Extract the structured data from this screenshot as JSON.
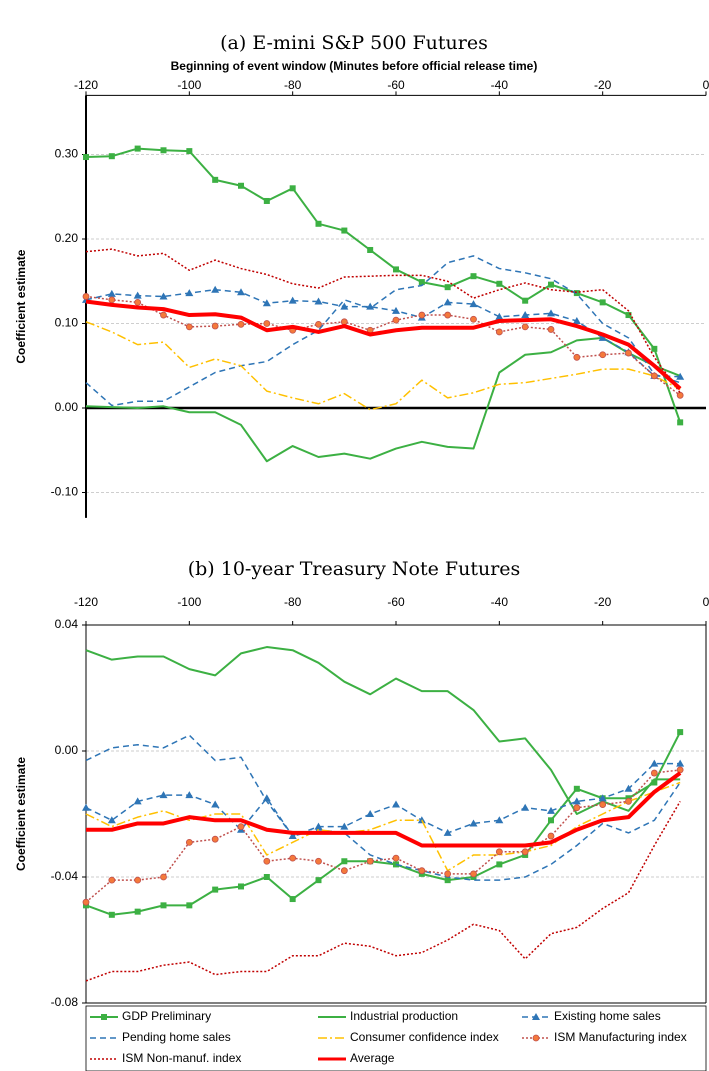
{
  "chart_data": [
    {
      "type": "line",
      "title": "(a) E-mini S&P 500 Futures",
      "xlabel": "Beginning of event window (Minutes before official release time)",
      "ylabel": "Coefficient estimate",
      "x": [
        -120,
        -115,
        -110,
        -105,
        -100,
        -95,
        -90,
        -85,
        -80,
        -75,
        -70,
        -65,
        -60,
        -55,
        -50,
        -45,
        -40,
        -35,
        -30,
        -25,
        -20,
        -15,
        -10,
        -5
      ],
      "xlim": [
        -120,
        0
      ],
      "xticks": [
        -120,
        -100,
        -80,
        -60,
        -40,
        -20,
        0
      ],
      "ylim": [
        -0.13,
        0.37
      ],
      "yticks": [
        {
          "value": -0.1,
          "label": "-0.10"
        },
        {
          "value": 0,
          "label": "0.00"
        },
        {
          "value": 0.1,
          "label": "0.10"
        },
        {
          "value": 0.2,
          "label": "0.20"
        },
        {
          "value": 0.3,
          "label": "0.30"
        }
      ],
      "grid": true,
      "series": [
        {
          "color": "#3cb043",
          "dash": "solid",
          "marker": "square",
          "width": 2,
          "values": [
            0.297,
            0.298,
            0.307,
            0.305,
            0.304,
            0.27,
            0.263,
            0.245,
            0.26,
            0.218,
            0.21,
            0.187,
            0.164,
            0.149,
            0.143,
            0.156,
            0.147,
            0.127,
            0.146,
            0.136,
            0.125,
            0.11,
            0.07,
            -0.017
          ]
        },
        {
          "color": "#3cb043",
          "dash": "solid",
          "marker": "none",
          "width": 2,
          "values": [
            0.002,
            0.001,
            0.0,
            0.002,
            -0.005,
            -0.005,
            -0.02,
            -0.063,
            -0.045,
            -0.058,
            -0.054,
            -0.06,
            -0.048,
            -0.04,
            -0.046,
            -0.048,
            0.042,
            0.063,
            0.066,
            0.08,
            0.083,
            0.065,
            0.05,
            0.038
          ]
        },
        {
          "color": "#2e75b6",
          "dash": "dash",
          "marker": "triangle",
          "width": 1.5,
          "values": [
            0.128,
            0.135,
            0.133,
            0.132,
            0.136,
            0.14,
            0.137,
            0.124,
            0.127,
            0.126,
            0.12,
            0.12,
            0.115,
            0.107,
            0.125,
            0.123,
            0.108,
            0.11,
            0.112,
            0.103,
            0.083,
            0.066,
            0.038,
            0.037
          ]
        },
        {
          "color": "#2e75b6",
          "dash": "dash",
          "marker": "none",
          "width": 1.5,
          "values": [
            0.03,
            0.003,
            0.008,
            0.008,
            0.025,
            0.042,
            0.05,
            0.055,
            0.075,
            0.092,
            0.128,
            0.118,
            0.14,
            0.145,
            0.172,
            0.18,
            0.165,
            0.16,
            0.153,
            0.135,
            0.1,
            0.083,
            0.04,
            0.03
          ]
        },
        {
          "color": "#ffc000",
          "dash": "dashdot",
          "marker": "none",
          "width": 1.5,
          "values": [
            0.102,
            0.09,
            0.075,
            0.078,
            0.048,
            0.058,
            0.05,
            0.02,
            0.012,
            0.005,
            0.017,
            -0.002,
            0.005,
            0.033,
            0.012,
            0.018,
            0.028,
            0.03,
            0.035,
            0.04,
            0.046,
            0.046,
            0.038,
            0.022
          ]
        },
        {
          "color": "#c0504d",
          "dash": "dot",
          "marker": "circle",
          "width": 1.5,
          "values": [
            0.132,
            0.128,
            0.125,
            0.11,
            0.096,
            0.097,
            0.099,
            0.1,
            0.092,
            0.099,
            0.102,
            0.092,
            0.104,
            0.11,
            0.11,
            0.105,
            0.09,
            0.096,
            0.093,
            0.06,
            0.063,
            0.065,
            0.038,
            0.015
          ]
        },
        {
          "color": "#c00000",
          "dash": "dot",
          "marker": "none",
          "width": 1.5,
          "values": [
            0.185,
            0.188,
            0.18,
            0.183,
            0.163,
            0.175,
            0.165,
            0.158,
            0.147,
            0.142,
            0.155,
            0.156,
            0.157,
            0.157,
            0.15,
            0.13,
            0.14,
            0.148,
            0.14,
            0.137,
            0.14,
            0.115,
            0.06,
            0.018
          ]
        },
        {
          "color": "#ff0000",
          "dash": "solid",
          "marker": "none",
          "width": 4,
          "values": [
            0.126,
            0.122,
            0.119,
            0.117,
            0.11,
            0.111,
            0.107,
            0.092,
            0.096,
            0.09,
            0.097,
            0.087,
            0.092,
            0.095,
            0.095,
            0.095,
            0.103,
            0.104,
            0.105,
            0.097,
            0.087,
            0.075,
            0.05,
            0.023
          ]
        }
      ]
    },
    {
      "type": "line",
      "title": "(b) 10-year Treasury Note Futures",
      "ylabel": "Coefficient estimate",
      "x": [
        -120,
        -115,
        -110,
        -105,
        -100,
        -95,
        -90,
        -85,
        -80,
        -75,
        -70,
        -65,
        -60,
        -55,
        -50,
        -45,
        -40,
        -35,
        -30,
        -25,
        -20,
        -15,
        -10,
        -5
      ],
      "xlim": [
        -120,
        0
      ],
      "xticks": [
        -120,
        -100,
        -80,
        -60,
        -40,
        -20,
        0
      ],
      "ylim": [
        -0.08,
        0.04
      ],
      "yticks": [
        -0.08,
        -0.04,
        {
          "value": 0,
          "label": "0.00"
        },
        0.04
      ],
      "grid": true,
      "legend": "bottom",
      "series": [
        {
          "name": "GDP Preliminary",
          "color": "#3cb043",
          "dash": "solid",
          "marker": "square",
          "width": 2,
          "values": [
            -0.049,
            -0.052,
            -0.051,
            -0.049,
            -0.049,
            -0.044,
            -0.043,
            -0.04,
            -0.047,
            -0.041,
            -0.035,
            -0.035,
            -0.036,
            -0.039,
            -0.041,
            -0.04,
            -0.036,
            -0.033,
            -0.022,
            -0.012,
            -0.015,
            -0.015,
            -0.01,
            0.006
          ]
        },
        {
          "name": "Industrial production",
          "color": "#3cb043",
          "dash": "solid",
          "marker": "none",
          "width": 2,
          "values": [
            0.032,
            0.029,
            0.03,
            0.03,
            0.026,
            0.024,
            0.031,
            0.033,
            0.032,
            0.028,
            0.022,
            0.018,
            0.023,
            0.019,
            0.019,
            0.013,
            0.003,
            0.004,
            -0.006,
            -0.02,
            -0.016,
            -0.019,
            -0.009,
            -0.009
          ]
        },
        {
          "name": "Existing home sales",
          "color": "#2e75b6",
          "dash": "dash",
          "marker": "triangle",
          "width": 1.5,
          "values": [
            -0.018,
            -0.022,
            -0.016,
            -0.014,
            -0.014,
            -0.017,
            -0.025,
            -0.015,
            -0.027,
            -0.024,
            -0.024,
            -0.02,
            -0.017,
            -0.022,
            -0.026,
            -0.023,
            -0.022,
            -0.018,
            -0.019,
            -0.016,
            -0.015,
            -0.012,
            -0.004,
            -0.004
          ]
        },
        {
          "name": "Pending home sales",
          "color": "#2e75b6",
          "dash": "dash",
          "marker": "none",
          "width": 1.5,
          "values": [
            -0.003,
            0.001,
            0.002,
            0.001,
            0.005,
            -0.003,
            -0.002,
            -0.016,
            -0.027,
            -0.025,
            -0.026,
            -0.033,
            -0.036,
            -0.038,
            -0.04,
            -0.041,
            -0.041,
            -0.04,
            -0.036,
            -0.03,
            -0.023,
            -0.026,
            -0.022,
            -0.01
          ]
        },
        {
          "name": "Consumer confidence index",
          "color": "#ffc000",
          "dash": "dashdot",
          "marker": "none",
          "width": 1.5,
          "values": [
            -0.02,
            -0.024,
            -0.021,
            -0.019,
            -0.022,
            -0.02,
            -0.02,
            -0.033,
            -0.029,
            -0.025,
            -0.026,
            -0.025,
            -0.022,
            -0.022,
            -0.038,
            -0.033,
            -0.033,
            -0.032,
            -0.03,
            -0.024,
            -0.02,
            -0.016,
            -0.013,
            -0.01
          ]
        },
        {
          "name": "ISM Manufacturing index",
          "color": "#c0504d",
          "dash": "dot",
          "marker": "circle",
          "width": 1.5,
          "values": [
            -0.048,
            -0.041,
            -0.041,
            -0.04,
            -0.029,
            -0.028,
            -0.024,
            -0.035,
            -0.034,
            -0.035,
            -0.038,
            -0.035,
            -0.034,
            -0.038,
            -0.039,
            -0.039,
            -0.032,
            -0.032,
            -0.027,
            -0.018,
            -0.017,
            -0.016,
            -0.007,
            -0.006
          ]
        },
        {
          "name": "ISM Non-manuf. index",
          "color": "#c00000",
          "dash": "dot",
          "marker": "none",
          "width": 1.5,
          "values": [
            -0.073,
            -0.07,
            -0.07,
            -0.068,
            -0.067,
            -0.071,
            -0.07,
            -0.07,
            -0.065,
            -0.065,
            -0.061,
            -0.062,
            -0.065,
            -0.064,
            -0.06,
            -0.055,
            -0.057,
            -0.066,
            -0.058,
            -0.056,
            -0.05,
            -0.045,
            -0.03,
            -0.016
          ]
        },
        {
          "name": "Average",
          "color": "#ff0000",
          "dash": "solid",
          "marker": "none",
          "width": 4,
          "values": [
            -0.025,
            -0.025,
            -0.023,
            -0.023,
            -0.021,
            -0.022,
            -0.022,
            -0.025,
            -0.026,
            -0.026,
            -0.026,
            -0.026,
            -0.026,
            -0.03,
            -0.03,
            -0.03,
            -0.03,
            -0.03,
            -0.029,
            -0.025,
            -0.022,
            -0.021,
            -0.013,
            -0.007
          ]
        }
      ]
    }
  ]
}
